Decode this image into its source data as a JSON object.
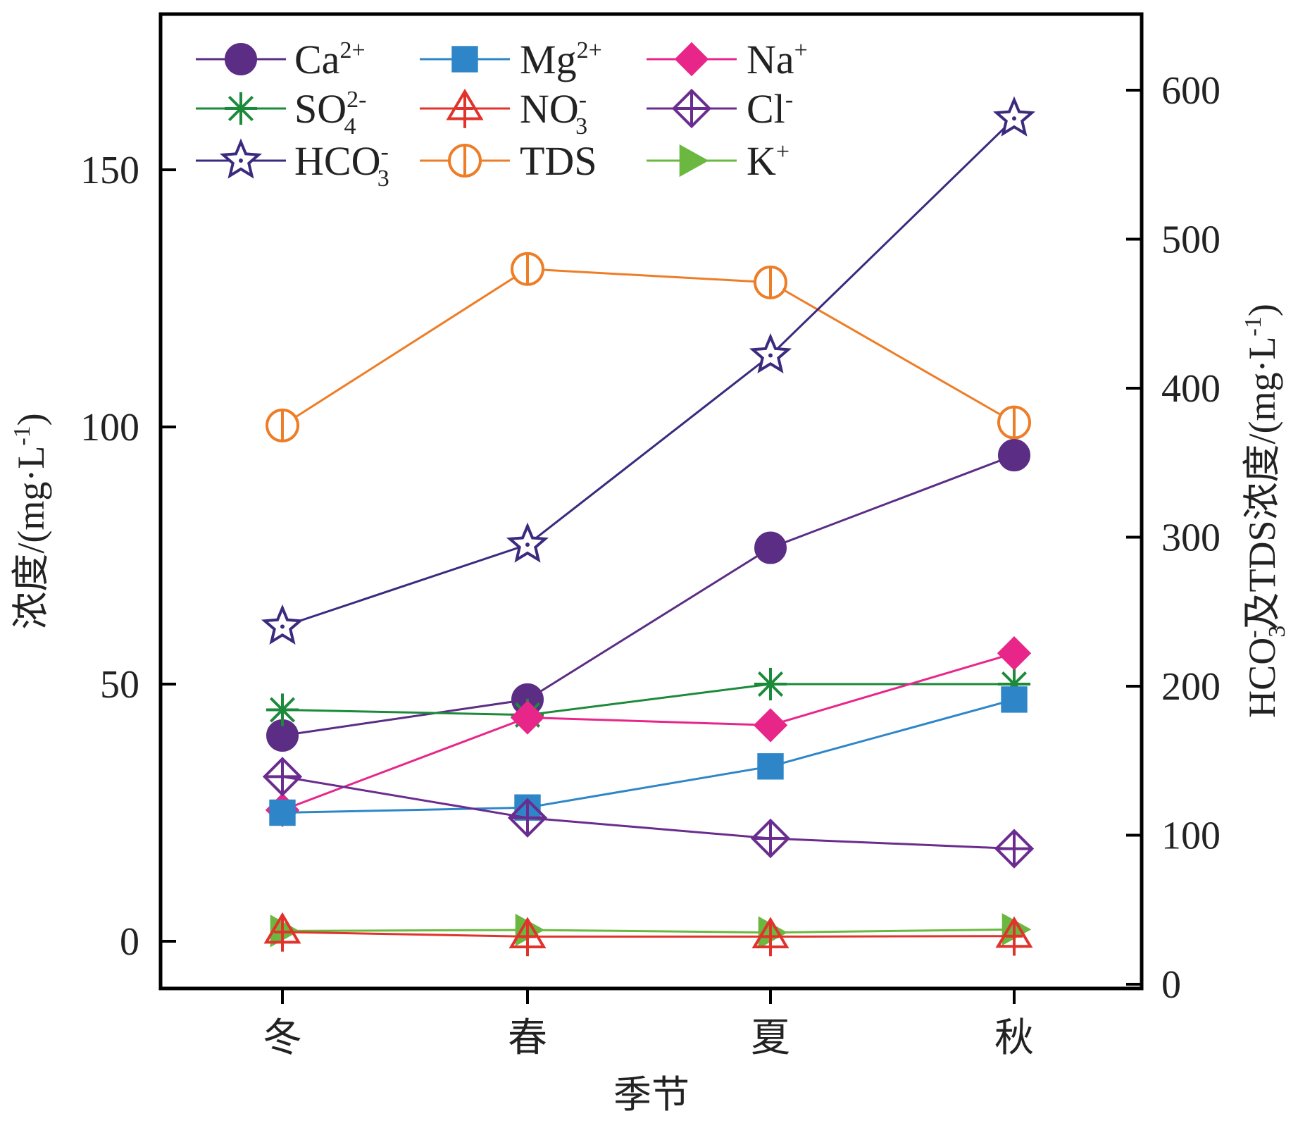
{
  "chart_data": {
    "type": "line",
    "categories": [
      "冬",
      "春",
      "夏",
      "秋"
    ],
    "xlabel": "季节",
    "ylabel_left": "浓度/(mg·L⁻¹)",
    "ylabel_right": "HCO₃⁻及TDS浓度/(mg·L⁻¹)",
    "ylim_left": [
      -10,
      180
    ],
    "ylim_right": [
      0,
      640
    ],
    "yticks_left": [
      0,
      50,
      100,
      150
    ],
    "yticks_right": [
      0,
      100,
      200,
      300,
      400,
      500,
      600
    ],
    "grid": false,
    "legend_position": "top-left",
    "series": [
      {
        "key": "ca",
        "name": "Ca²⁺",
        "axis": "left",
        "color": "#5b2d84",
        "marker": "filled-circle",
        "values": [
          40,
          47,
          76.5,
          94.5
        ]
      },
      {
        "key": "mg",
        "name": "Mg²⁺",
        "axis": "left",
        "color": "#2e86c8",
        "marker": "filled-square",
        "values": [
          25,
          26,
          34,
          47
        ]
      },
      {
        "key": "na",
        "name": "Na⁺",
        "axis": "left",
        "color": "#e8268a",
        "marker": "filled-diamond",
        "values": [
          25.5,
          43.5,
          42,
          56
        ]
      },
      {
        "key": "so4",
        "name": "SO₄²⁻",
        "axis": "left",
        "color": "#1b8a3a",
        "marker": "asterisk",
        "values": [
          45,
          44,
          50,
          50
        ]
      },
      {
        "key": "no3",
        "name": "NO₃⁻",
        "axis": "left",
        "color": "#e0332b",
        "marker": "open-triangle-cross",
        "values": [
          1.8,
          0.9,
          0.9,
          1.0
        ]
      },
      {
        "key": "cl",
        "name": "Cl⁻",
        "axis": "left",
        "color": "#6a2c8e",
        "marker": "open-diamond-cross",
        "values": [
          32,
          24,
          20,
          18
        ]
      },
      {
        "key": "hco3",
        "name": "HCO₃⁻",
        "axis": "right",
        "color": "#3b2a7e",
        "marker": "open-star",
        "values": [
          240,
          295,
          422,
          581
        ]
      },
      {
        "key": "tds",
        "name": "TDS",
        "axis": "right",
        "color": "#ee7d27",
        "marker": "open-circle-line",
        "values": [
          375,
          480,
          471,
          377
        ]
      },
      {
        "key": "k",
        "name": "K⁺",
        "axis": "left",
        "color": "#6ab840",
        "marker": "filled-triangle-right",
        "values": [
          2.0,
          2.2,
          1.7,
          2.3
        ]
      }
    ],
    "legend_labels": {
      "ca": {
        "base": "Ca",
        "sup": "2+",
        "sub": ""
      },
      "mg": {
        "base": "Mg",
        "sup": "2+",
        "sub": ""
      },
      "na": {
        "base": "Na",
        "sup": "+",
        "sub": ""
      },
      "so4": {
        "base": "SO",
        "sup": "2-",
        "sub": "4"
      },
      "no3": {
        "base": "NO",
        "sup": "-",
        "sub": "3"
      },
      "cl": {
        "base": "Cl",
        "sup": "-",
        "sub": ""
      },
      "hco3": {
        "base": "HCO",
        "sup": "-",
        "sub": "3"
      },
      "tds": {
        "base": "TDS",
        "sup": "",
        "sub": ""
      },
      "k": {
        "base": "K",
        "sup": "+",
        "sub": ""
      }
    }
  }
}
